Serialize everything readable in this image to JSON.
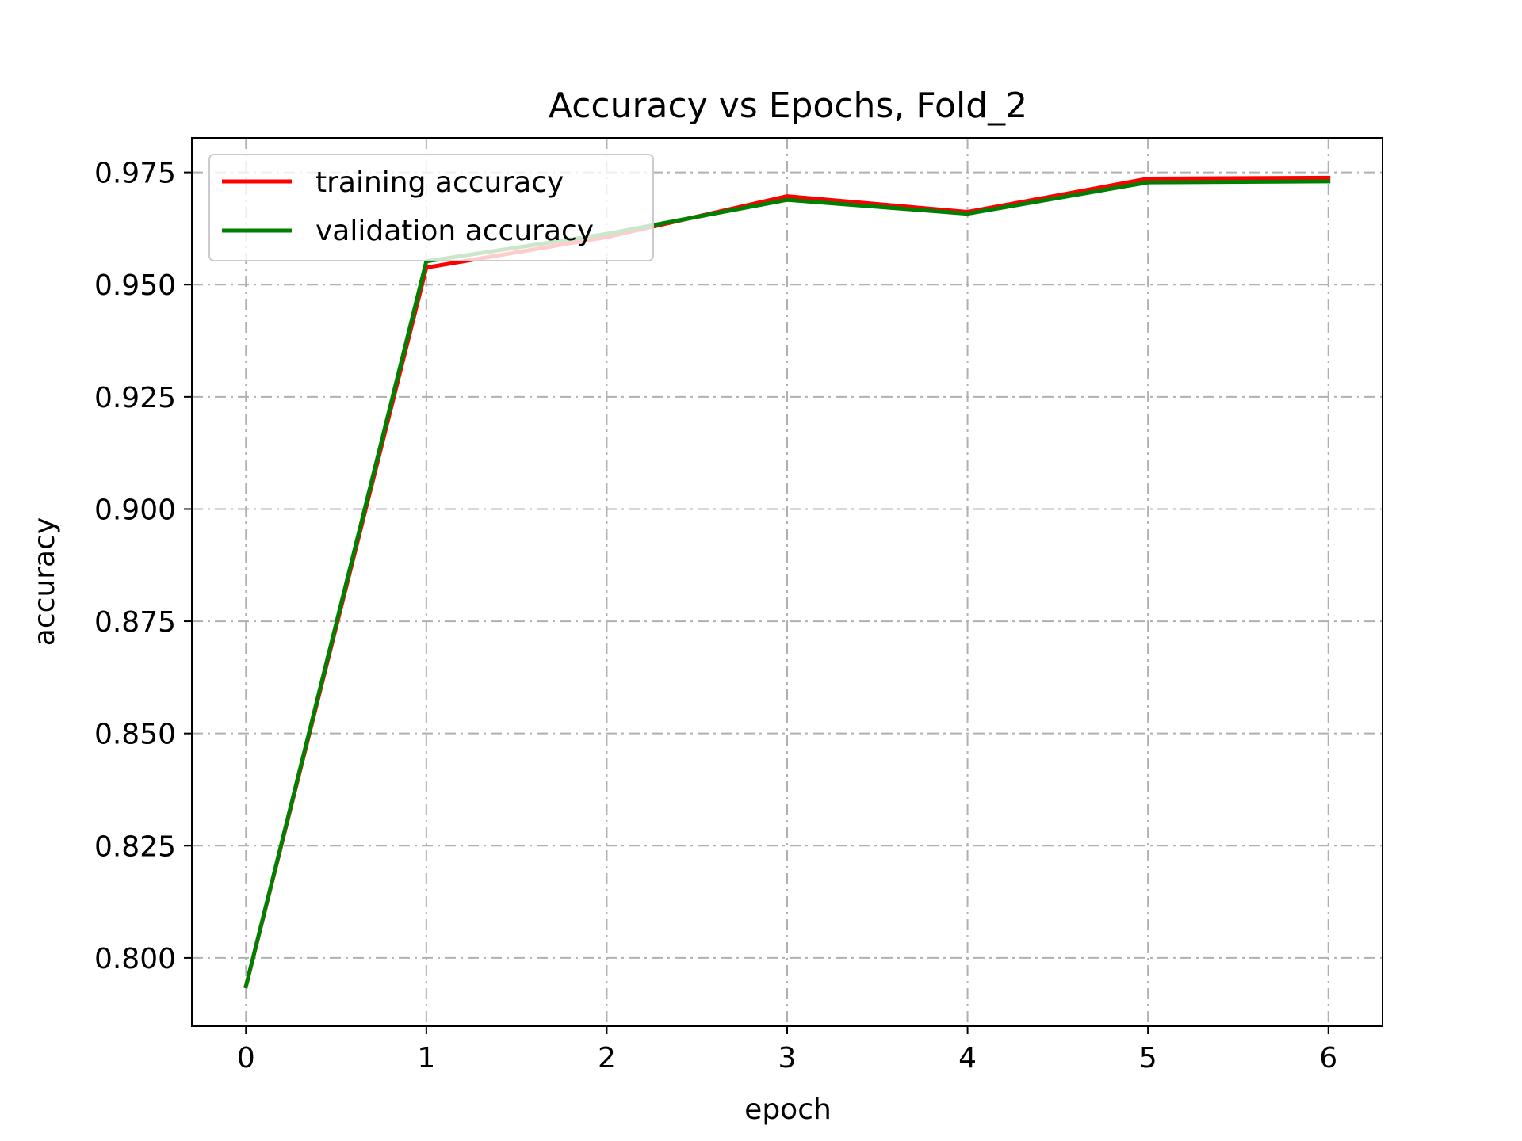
{
  "chart_data": {
    "type": "line",
    "title": "Accuracy vs Epochs, Fold_2",
    "xlabel": "epoch",
    "ylabel": "accuracy",
    "xlim": [
      -0.3,
      6.3
    ],
    "ylim": [
      0.7848,
      0.9827
    ],
    "x_ticks": [
      "0",
      "1",
      "2",
      "3",
      "4",
      "5",
      "6"
    ],
    "y_ticks": [
      "0.800",
      "0.825",
      "0.850",
      "0.875",
      "0.900",
      "0.925",
      "0.950",
      "0.975"
    ],
    "grid": true,
    "legend_position": "upper-left",
    "x": [
      0,
      1,
      2,
      3,
      4,
      5,
      6
    ],
    "series": [
      {
        "name": "training accuracy",
        "color": "#ff0000",
        "values": [
          0.7937,
          0.9538,
          0.9606,
          0.9697,
          0.9662,
          0.9736,
          0.9738
        ]
      },
      {
        "name": "validation accuracy",
        "color": "#008000",
        "values": [
          0.7937,
          0.9552,
          0.9613,
          0.9689,
          0.9658,
          0.9728,
          0.973
        ]
      }
    ]
  }
}
